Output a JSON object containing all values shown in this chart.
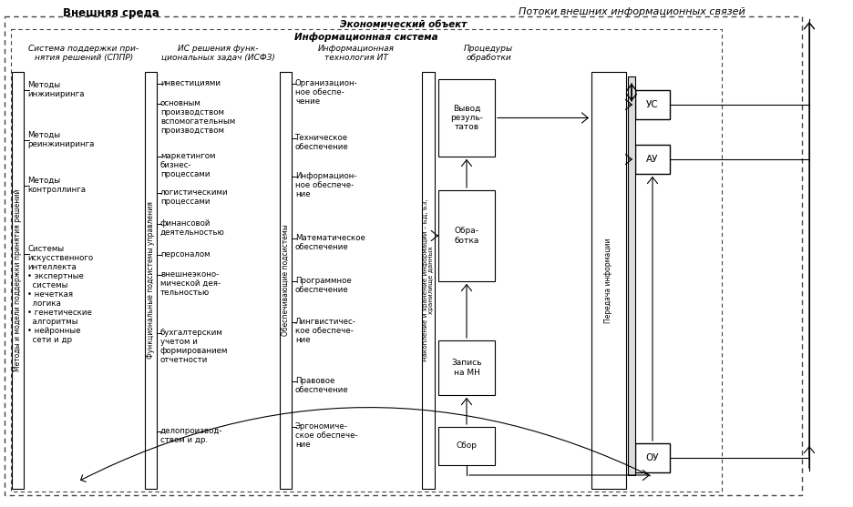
{
  "title_top_left": "Внешняя среда",
  "title_top_right": "Потоки внешних информационных связей",
  "label_econ": "Экономический объект",
  "label_info_sys": "Информационная система",
  "col1_title": "Система поддержки при-\nнятия решений (СППР)",
  "col2_title": "ИС решения функ-\nциональных задач (ИСФЗ)",
  "col3_title": "Информационная\nтехнология ИТ",
  "col4_title": "Процедуры\nобработки",
  "col1_side_label": "Методы и модели поддержки принятия решений",
  "col2_side_label": "Функциональные подсистемы управления",
  "col3_side_label": "Обеспечивающие подсистемы",
  "col4_side_label": "Накопление и хранение информации – БД, БЗ,\nхранилище данных",
  "col5_side_label": "Передача информации",
  "col1_items": [
    "Методы\nинжиниринга",
    "Методы\nреинжиниринга",
    "Методы\nконтроллинга",
    "Системы\nискусственного\nинтеллекта\n• экспертные\n  системы\n• нечеткая\n  логика\n• генетические\n  алгоритмы\n• нейронные\n  сети и др"
  ],
  "col2_items": [
    "инвестициями",
    "основным\nпроизводством\nвспомогательным\nпроизводством",
    "маркетингом\nбизнес-\nпроцессами",
    "логистическими\nпроцессами",
    "финансовой\nдеятельностью",
    "персоналом",
    "внешнеэконо-\nмической дея-\nтельностью",
    "бухгалтерским\nучетом и\nформированием\nотчетности",
    "делопроизвод-\nством и др."
  ],
  "col3_items": [
    "Организацион-\nное обеспе-\nчение",
    "Техническое\nобеспечение",
    "Информацион-\nное обеспече-\nние",
    "Математическое\nобеспечение",
    "Программное\nобеспечение",
    "Лингвистичес-\nкое обеспече-\nние",
    "Правовое\nобеспечение",
    "Эргономиче-\nское обеспече-\nние"
  ],
  "proc_boxes": [
    "Вывод\nрезуль-\nтатов",
    "Обра-\nботка",
    "Запись\nна МН",
    "Сбор"
  ],
  "right_boxes": [
    "УС",
    "АУ"
  ],
  "bottom_box": "ОУ",
  "bg_color": "#ffffff"
}
